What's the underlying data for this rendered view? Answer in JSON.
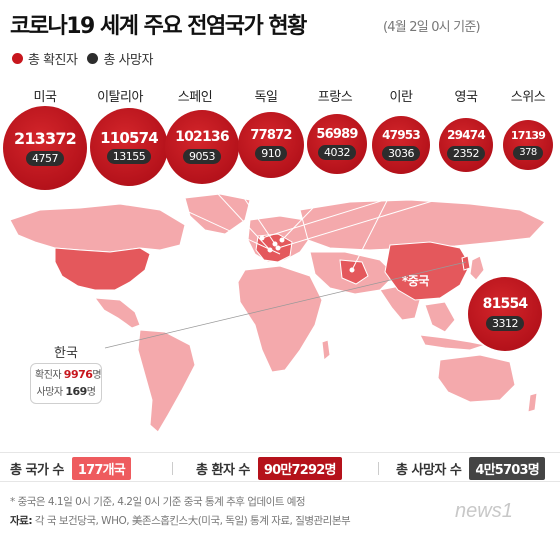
{
  "header": {
    "title": "코로나19 세계 주요 전염국가 현황",
    "subtitle": "(4월 2일 0시 기준)"
  },
  "legend": {
    "cases_label": "총 확진자",
    "deaths_label": "총 사망자",
    "cases_color": "#c7161d",
    "deaths_color": "#2d2d2d"
  },
  "countries": [
    {
      "name": "미국",
      "cases": "213372",
      "deaths": "4757"
    },
    {
      "name": "이탈리아",
      "cases": "110574",
      "deaths": "13155"
    },
    {
      "name": "스페인",
      "cases": "102136",
      "deaths": "9053"
    },
    {
      "name": "독일",
      "cases": "77872",
      "deaths": "910"
    },
    {
      "name": "프랑스",
      "cases": "56989",
      "deaths": "4032"
    },
    {
      "name": "이란",
      "cases": "47953",
      "deaths": "3036"
    },
    {
      "name": "영국",
      "cases": "29474",
      "deaths": "2352"
    },
    {
      "name": "스위스",
      "cases": "17139",
      "deaths": "378"
    }
  ],
  "china": {
    "label": "*중국",
    "cases": "81554",
    "deaths": "3312"
  },
  "korea": {
    "title": "한국",
    "cases_label": "확진자",
    "cases_value": "9976",
    "cases_unit": "명",
    "deaths_label": "사망자",
    "deaths_value": "169",
    "deaths_unit": "명"
  },
  "totals": {
    "countries_label": "총 국가 수",
    "countries_value": "177개국",
    "recovered_label": "총 환자 수",
    "recovered_value": "90만7292명",
    "deaths_label": "총 사망자 수",
    "deaths_value": "4만5703명"
  },
  "footer": {
    "note": "* 중국은 4.1일 0시 기준, 4.2일 0시 기준 중국 통계 추후 업데이트 예정",
    "source_label": "자료:",
    "source_text": "각 국 보건당국, WHO, 美존스홉킨스大(미국, 독일) 통계 자료, 질병관리본부",
    "logo_text": "news1"
  },
  "colors": {
    "map_base": "#f4a9ac",
    "map_highlight": "#e4585c",
    "bubble": "#b5121b",
    "accent": "#c7161d"
  }
}
